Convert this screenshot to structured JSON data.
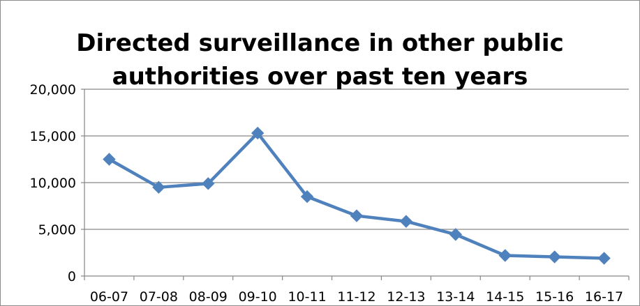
{
  "chart_data": {
    "type": "line",
    "title_lines": [
      "Directed surveillance in other public",
      "authorities over past ten years"
    ],
    "xlabel": "",
    "ylabel": "",
    "categories": [
      "06-07",
      "07-08",
      "08-09",
      "09-10",
      "10-11",
      "11-12",
      "12-13",
      "13-14",
      "14-15",
      "15-16",
      "16-17"
    ],
    "series": [
      {
        "values": [
          12500,
          9500,
          9900,
          15300,
          8500,
          6450,
          5850,
          4450,
          2200,
          2050,
          1900
        ]
      }
    ],
    "ylim": [
      0,
      20000
    ],
    "yticks": [
      0,
      5000,
      10000,
      15000,
      20000
    ],
    "ytick_labels": [
      "0",
      "5,000",
      "10,000",
      "15,000",
      "20,000"
    ],
    "grid": true,
    "legend": "none",
    "colors": {
      "line": "#4f81bd",
      "marker": "#4f81bd",
      "grid": "#868686",
      "axis": "#868686"
    }
  }
}
